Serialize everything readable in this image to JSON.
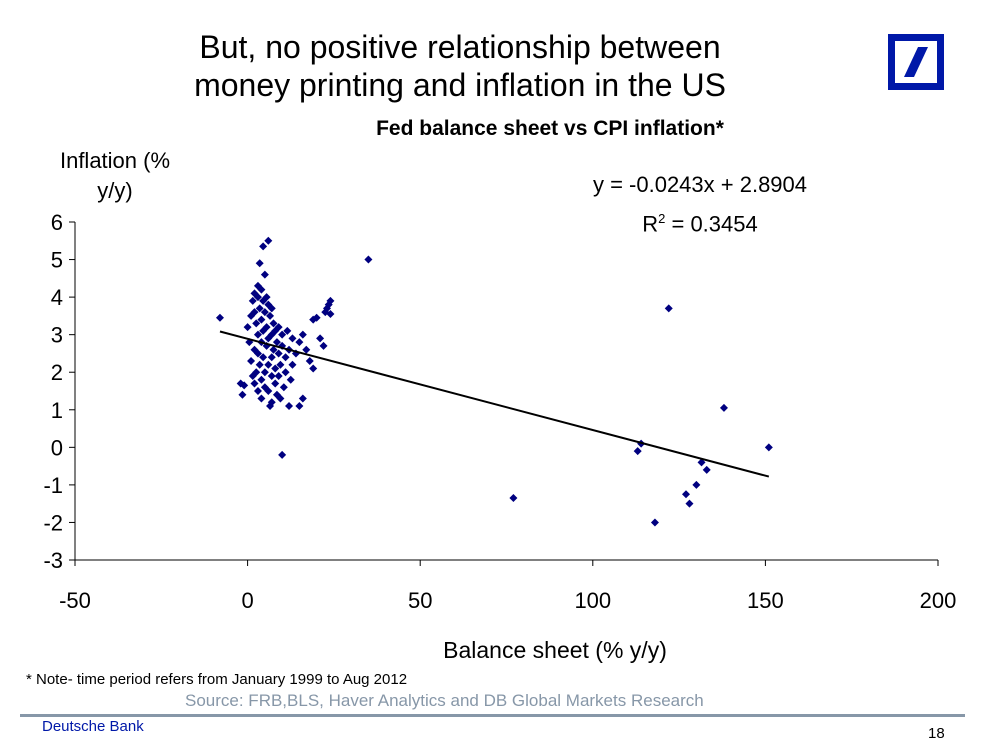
{
  "slide": {
    "title_line1": "But, no positive relationship between",
    "title_line2": "money printing and inflation in the US",
    "brand_color": "#0018a8",
    "footer_brand": "Deutsche Bank",
    "page_number": "18",
    "note": "* Note- time period refers from January 1999  to  Aug 2012",
    "source": "Source: FRB,BLS, Haver  Analytics and DB Global Markets Research",
    "logo_icon": "deutsche-bank-logo"
  },
  "chart_data": {
    "type": "scatter",
    "title": "Fed balance sheet vs CPI inflation*",
    "xlabel": "Balance sheet (% y/y)",
    "ylabel_line1": "Inflation (%",
    "ylabel_line2": "y/y)",
    "xlim": [
      -50,
      200
    ],
    "ylim": [
      -3,
      6
    ],
    "xticks": [
      -50,
      0,
      50,
      100,
      150,
      200
    ],
    "yticks": [
      6,
      5,
      4,
      3,
      2,
      1,
      0,
      -1,
      -2,
      -3
    ],
    "grid": false,
    "marker_color": "#000080",
    "trendline": {
      "equation": "y = -0.0243x + 2.8904",
      "r2_label": "R",
      "r2_value": " = 0.3454",
      "slope": -0.0243,
      "intercept": 2.8904,
      "x_range": [
        -8,
        151
      ]
    },
    "points": [
      [
        -8,
        3.45
      ],
      [
        -2,
        1.7
      ],
      [
        -1.5,
        1.4
      ],
      [
        -1,
        1.65
      ],
      [
        0,
        3.2
      ],
      [
        0.5,
        2.8
      ],
      [
        1,
        3.5
      ],
      [
        1,
        2.3
      ],
      [
        1.5,
        3.9
      ],
      [
        1.5,
        1.9
      ],
      [
        2,
        4.1
      ],
      [
        2,
        3.6
      ],
      [
        2,
        2.6
      ],
      [
        2,
        1.7
      ],
      [
        2.5,
        3.3
      ],
      [
        2.5,
        2.0
      ],
      [
        3,
        4.3
      ],
      [
        3,
        4.0
      ],
      [
        3,
        3.0
      ],
      [
        3,
        2.5
      ],
      [
        3,
        1.5
      ],
      [
        3.5,
        4.9
      ],
      [
        3.5,
        3.7
      ],
      [
        3.5,
        2.2
      ],
      [
        4,
        4.2
      ],
      [
        4,
        3.4
      ],
      [
        4,
        2.8
      ],
      [
        4,
        1.8
      ],
      [
        4,
        1.3
      ],
      [
        4.5,
        5.35
      ],
      [
        4.5,
        3.9
      ],
      [
        4.5,
        3.1
      ],
      [
        4.5,
        2.4
      ],
      [
        5,
        4.6
      ],
      [
        5,
        3.6
      ],
      [
        5,
        2.0
      ],
      [
        5,
        1.6
      ],
      [
        5.5,
        4.0
      ],
      [
        5.5,
        3.2
      ],
      [
        5.5,
        2.7
      ],
      [
        6,
        5.5
      ],
      [
        6,
        3.8
      ],
      [
        6,
        2.9
      ],
      [
        6,
        2.2
      ],
      [
        6,
        1.5
      ],
      [
        6.5,
        3.5
      ],
      [
        6.5,
        1.1
      ],
      [
        7,
        3.7
      ],
      [
        7,
        3.0
      ],
      [
        7,
        2.4
      ],
      [
        7,
        1.9
      ],
      [
        7,
        1.2
      ],
      [
        7.5,
        3.3
      ],
      [
        7.5,
        2.6
      ],
      [
        8,
        3.1
      ],
      [
        8,
        2.1
      ],
      [
        8,
        1.7
      ],
      [
        8.5,
        2.8
      ],
      [
        8.5,
        1.4
      ],
      [
        9,
        3.2
      ],
      [
        9,
        2.5
      ],
      [
        9,
        1.9
      ],
      [
        9.5,
        2.2
      ],
      [
        9.5,
        1.3
      ],
      [
        10,
        3.0
      ],
      [
        10,
        2.7
      ],
      [
        10,
        -0.2
      ],
      [
        10.5,
        1.6
      ],
      [
        11,
        2.4
      ],
      [
        11,
        2.0
      ],
      [
        11.5,
        3.1
      ],
      [
        12,
        2.6
      ],
      [
        12,
        1.1
      ],
      [
        12.5,
        1.8
      ],
      [
        13,
        2.9
      ],
      [
        13,
        2.2
      ],
      [
        14,
        2.5
      ],
      [
        15,
        2.8
      ],
      [
        15,
        1.1
      ],
      [
        16,
        3.0
      ],
      [
        16,
        1.3
      ],
      [
        17,
        2.6
      ],
      [
        18,
        2.3
      ],
      [
        19,
        3.4
      ],
      [
        19,
        2.1
      ],
      [
        20,
        3.45
      ],
      [
        21,
        2.9
      ],
      [
        22,
        2.7
      ],
      [
        22.5,
        3.6
      ],
      [
        23,
        3.7
      ],
      [
        23.5,
        3.8
      ],
      [
        24,
        3.9
      ],
      [
        24,
        3.55
      ],
      [
        35,
        5.0
      ],
      [
        77,
        -1.35
      ],
      [
        113,
        -0.1
      ],
      [
        114,
        0.1
      ],
      [
        118,
        -2.0
      ],
      [
        122,
        3.7
      ],
      [
        127,
        -1.25
      ],
      [
        128,
        -1.5
      ],
      [
        130,
        -1.0
      ],
      [
        131.5,
        -0.4
      ],
      [
        133,
        -0.6
      ],
      [
        138,
        1.05
      ],
      [
        151,
        0.0
      ]
    ]
  }
}
